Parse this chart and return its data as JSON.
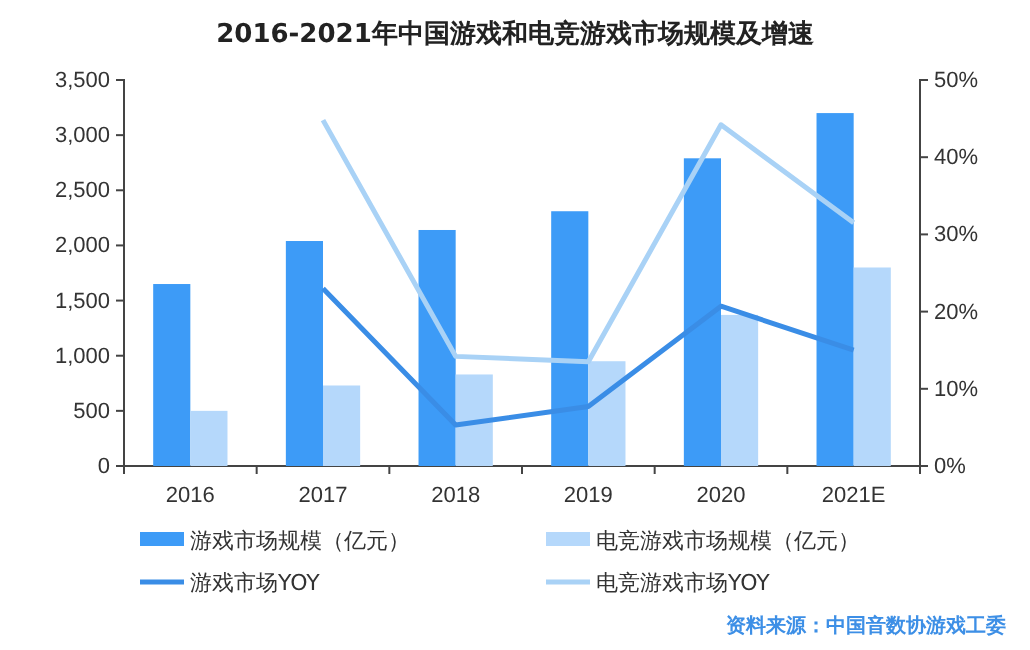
{
  "chart_data": {
    "type": "bar",
    "title": "2016-2021年中国游戏和电竞游戏市场规模及增速",
    "categories": [
      "2016",
      "2017",
      "2018",
      "2019",
      "2020",
      "2021E"
    ],
    "series": [
      {
        "name": "游戏市场规模（亿元）",
        "color": "#3d9bf7",
        "values": [
          1650,
          2040,
          2140,
          2310,
          2790,
          3200
        ]
      },
      {
        "name": "电竞游戏市场规模（亿元）",
        "color": "#b5d8fb",
        "values": [
          500,
          730,
          830,
          950,
          1370,
          1800
        ]
      },
      {
        "name": "游戏市场YOY",
        "type": "line",
        "axis": "y2",
        "color": "#3a8de6",
        "values": [
          null,
          23,
          5.3,
          7.7,
          20.7,
          15
        ]
      },
      {
        "name": "电竞游戏市场YOY",
        "type": "line",
        "axis": "y2",
        "color": "#a9d2f6",
        "values": [
          null,
          44.8,
          14.2,
          13.5,
          44.2,
          31.5
        ]
      }
    ],
    "ylim": [
      0,
      3500
    ],
    "yticks": [
      0,
      {
        "value": 500,
        "label": "500"
      },
      {
        "value": 1000,
        "label": "1,000"
      },
      {
        "value": 1500,
        "label": "1,500"
      },
      {
        "value": 2000,
        "label": "2,000"
      },
      {
        "value": 2500,
        "label": "2,500"
      },
      {
        "value": 3000,
        "label": "3,000"
      },
      {
        "value": 3500,
        "label": "3,500"
      }
    ],
    "y2lim": [
      0,
      50
    ],
    "y2ticks": [
      {
        "value": 0,
        "label": "0%"
      },
      {
        "value": 10,
        "label": "10%"
      },
      {
        "value": 20,
        "label": "20%"
      },
      {
        "value": 30,
        "label": "30%"
      },
      {
        "value": 40,
        "label": "40%"
      },
      {
        "value": 50,
        "label": "50%"
      }
    ],
    "legend": "bottom",
    "grid": false,
    "annotations": [
      "资料来源：中国音数协游戏工委"
    ]
  }
}
